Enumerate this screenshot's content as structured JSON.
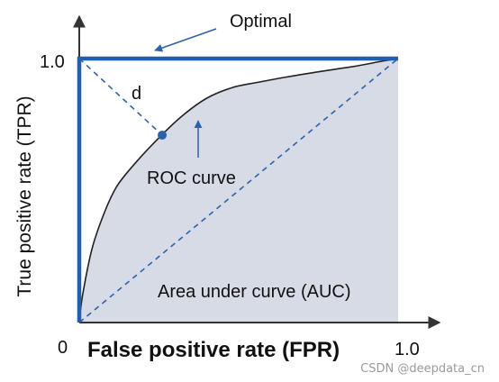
{
  "chart_data": {
    "type": "line",
    "xlabel": "False positive rate (FPR)",
    "ylabel": "True positive rate (TPR)",
    "xlim": [
      0,
      1
    ],
    "ylim": [
      0,
      1
    ],
    "tick_labels": {
      "origin": "0",
      "x_max": "1.0",
      "y_max": "1.0"
    },
    "series": [
      {
        "name": "ROC curve",
        "x": [
          0,
          0.01,
          0.04,
          0.08,
          0.12,
          0.18,
          0.25,
          0.32,
          0.4,
          0.48,
          0.56,
          0.65,
          0.75,
          0.86,
          0.95,
          1.0
        ],
        "y": [
          0,
          0.1,
          0.28,
          0.42,
          0.52,
          0.61,
          0.7,
          0.78,
          0.85,
          0.89,
          0.91,
          0.93,
          0.95,
          0.97,
          0.99,
          1.0
        ],
        "fill": "area-under-curve"
      },
      {
        "name": "Optimal",
        "x": [
          0,
          0,
          1
        ],
        "y": [
          0,
          1,
          1
        ]
      },
      {
        "name": "random-diagonal",
        "x": [
          0,
          1
        ],
        "y": [
          0,
          1
        ]
      }
    ],
    "distance_marker": {
      "from": [
        0,
        1
      ],
      "to": [
        0.26,
        0.71
      ],
      "label": "d"
    },
    "annotations": {
      "optimal": "Optimal",
      "roc_curve": "ROC curve",
      "auc": "Area under curve (AUC)"
    },
    "colors": {
      "optimal": "#1f5fb0",
      "curve": "#222222",
      "area_fill": "#d7dbe6",
      "dashed": "#2b62b0",
      "axis": "#333333"
    },
    "grid": false
  },
  "watermark": "CSDN @deepdata_cn"
}
